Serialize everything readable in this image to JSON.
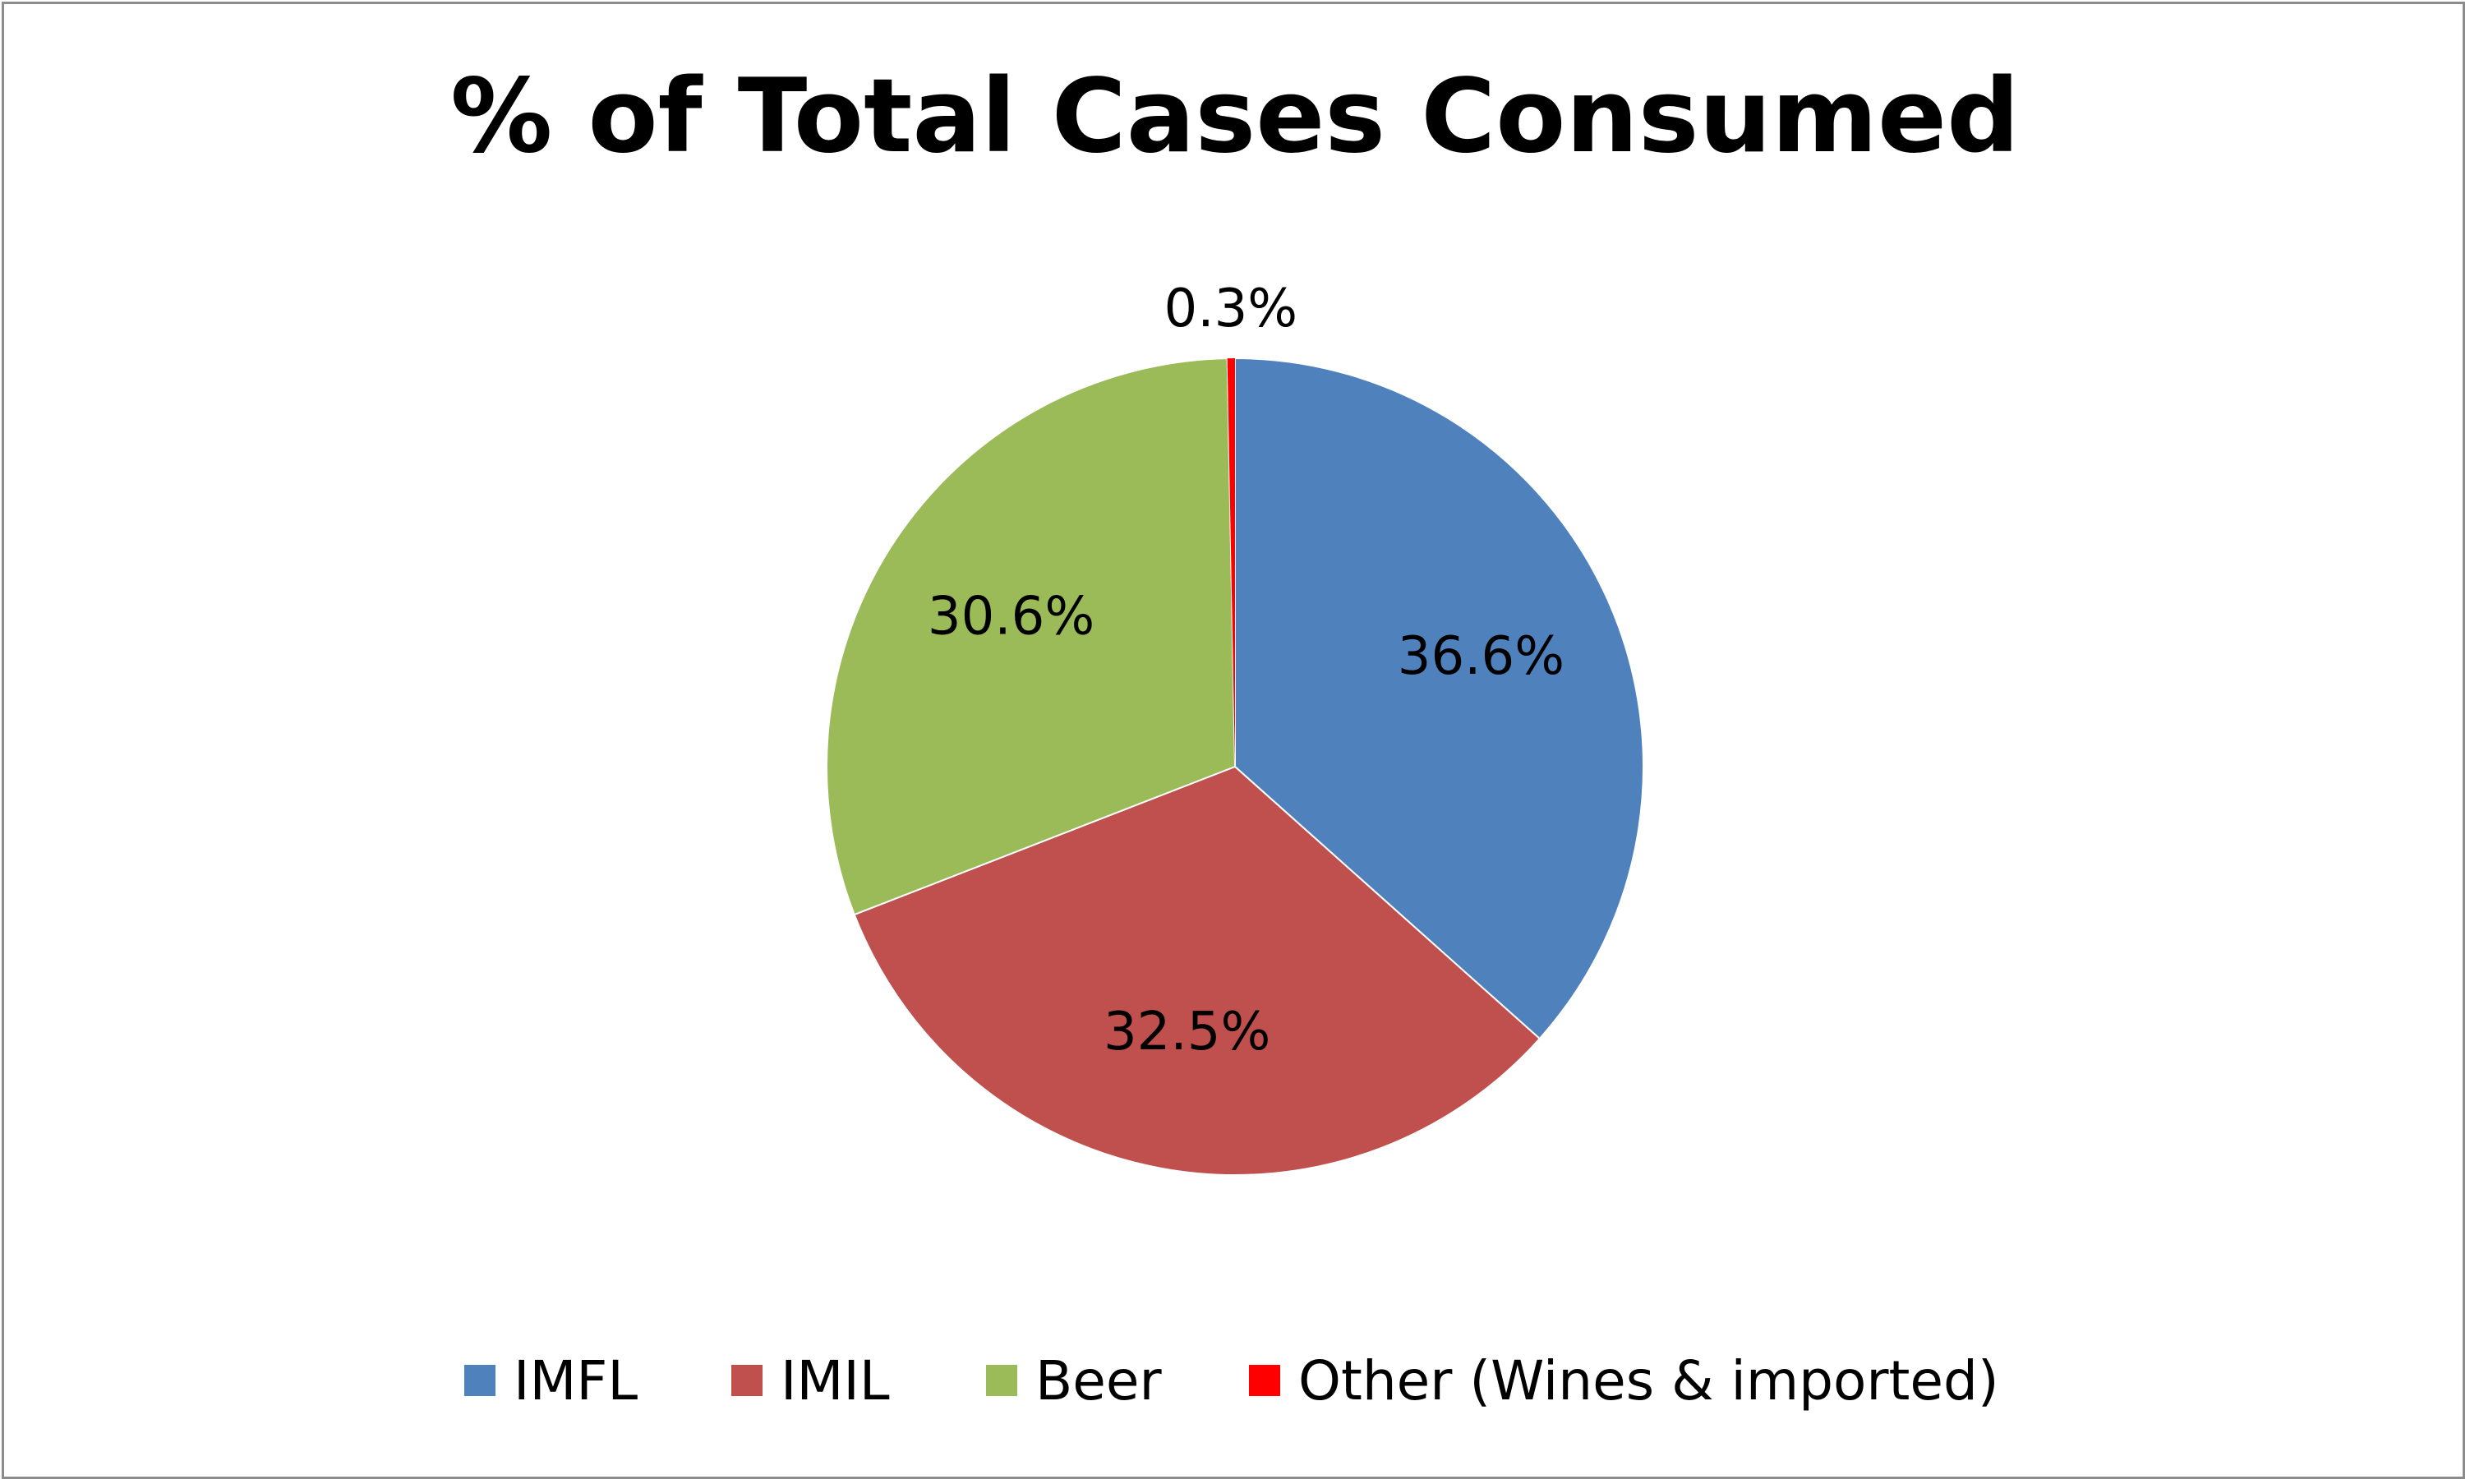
{
  "chart_data": {
    "type": "pie",
    "title": "% of Total Cases Consumed",
    "categories": [
      "IMFL",
      "IMIL",
      "Beer",
      "Other (Wines & imported)"
    ],
    "values": [
      36.6,
      32.5,
      30.6,
      0.3
    ],
    "data_labels": [
      "36.6%",
      "32.5%",
      "30.6%",
      "0.3%"
    ],
    "colors": [
      "#4F81BD",
      "#C0504D",
      "#9BBB59",
      "#FF0000"
    ],
    "legend_position": "bottom",
    "start_angle": "top, clockwise"
  }
}
